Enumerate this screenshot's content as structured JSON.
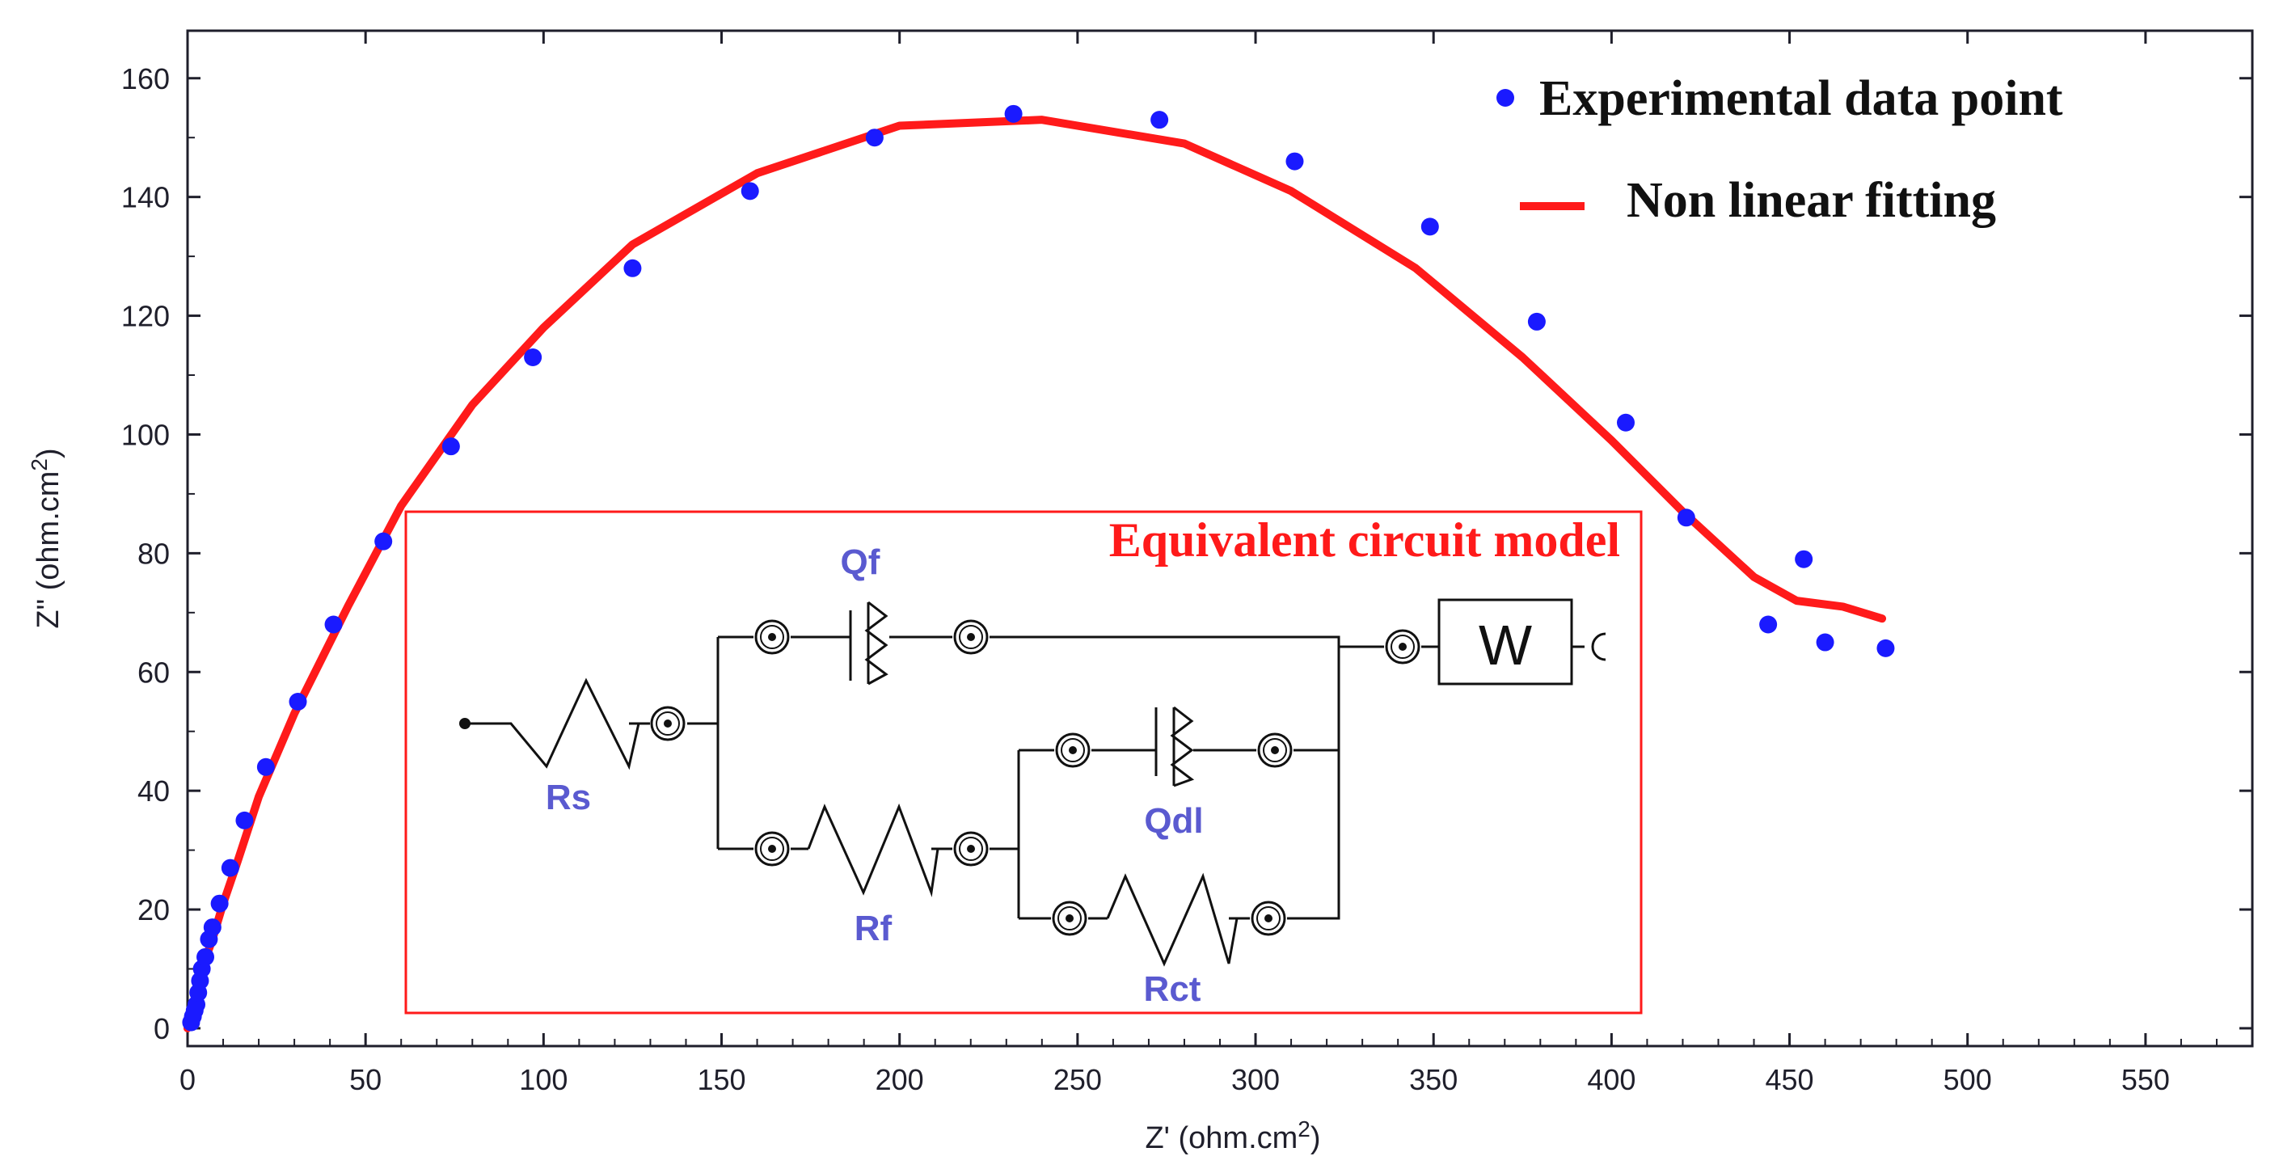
{
  "chart_data": {
    "type": "scatter",
    "title": "",
    "xlabel": "Z' (ohm.cm",
    "xlabel_sup": "2",
    "xlabel_end": ")",
    "ylabel": "Z\" (ohm.cm",
    "ylabel_sup": "2",
    "ylabel_end": ")",
    "xlim": [
      0,
      580
    ],
    "ylim": [
      -3,
      168
    ],
    "xticks": [
      0,
      50,
      100,
      150,
      200,
      250,
      300,
      350,
      400,
      450,
      500,
      550
    ],
    "yticks": [
      0,
      20,
      40,
      60,
      80,
      100,
      120,
      140,
      160
    ],
    "grid": false,
    "legend_position": "top-right",
    "series": [
      {
        "name": "Experimental data point",
        "kind": "points",
        "color": "#1a1aff",
        "x": [
          1,
          1.5,
          2,
          2.5,
          3,
          3.5,
          4,
          5,
          6,
          7,
          9,
          12,
          16,
          22,
          31,
          41,
          55,
          74,
          97,
          125,
          158,
          193,
          232,
          273,
          311,
          349,
          379,
          404,
          421,
          444,
          454,
          460,
          477
        ],
        "y": [
          1,
          2,
          3,
          4,
          6,
          8,
          10,
          12,
          15,
          17,
          21,
          27,
          35,
          44,
          55,
          68,
          82,
          98,
          113,
          128,
          141,
          150,
          154,
          153,
          146,
          135,
          119,
          102,
          86,
          68,
          79,
          65,
          64
        ]
      },
      {
        "name": "Non linear fitting",
        "kind": "line",
        "color": "#ff1a1a",
        "x": [
          0,
          2,
          4,
          7,
          10,
          14,
          20,
          30,
          45,
          60,
          80,
          100,
          125,
          160,
          200,
          240,
          280,
          310,
          345,
          375,
          400,
          420,
          440,
          452,
          465,
          476
        ],
        "y": [
          0,
          5,
          10,
          15,
          21,
          28,
          39,
          53,
          71,
          88,
          105,
          118,
          132,
          144,
          152,
          153,
          149,
          141,
          128,
          113,
          99,
          87,
          76,
          72,
          71,
          69
        ]
      }
    ],
    "annotations": {
      "inset_title": "Equivalent circuit model",
      "components": [
        "Rs",
        "Qf",
        "Rf",
        "Qdl",
        "Rct",
        "W"
      ]
    }
  }
}
